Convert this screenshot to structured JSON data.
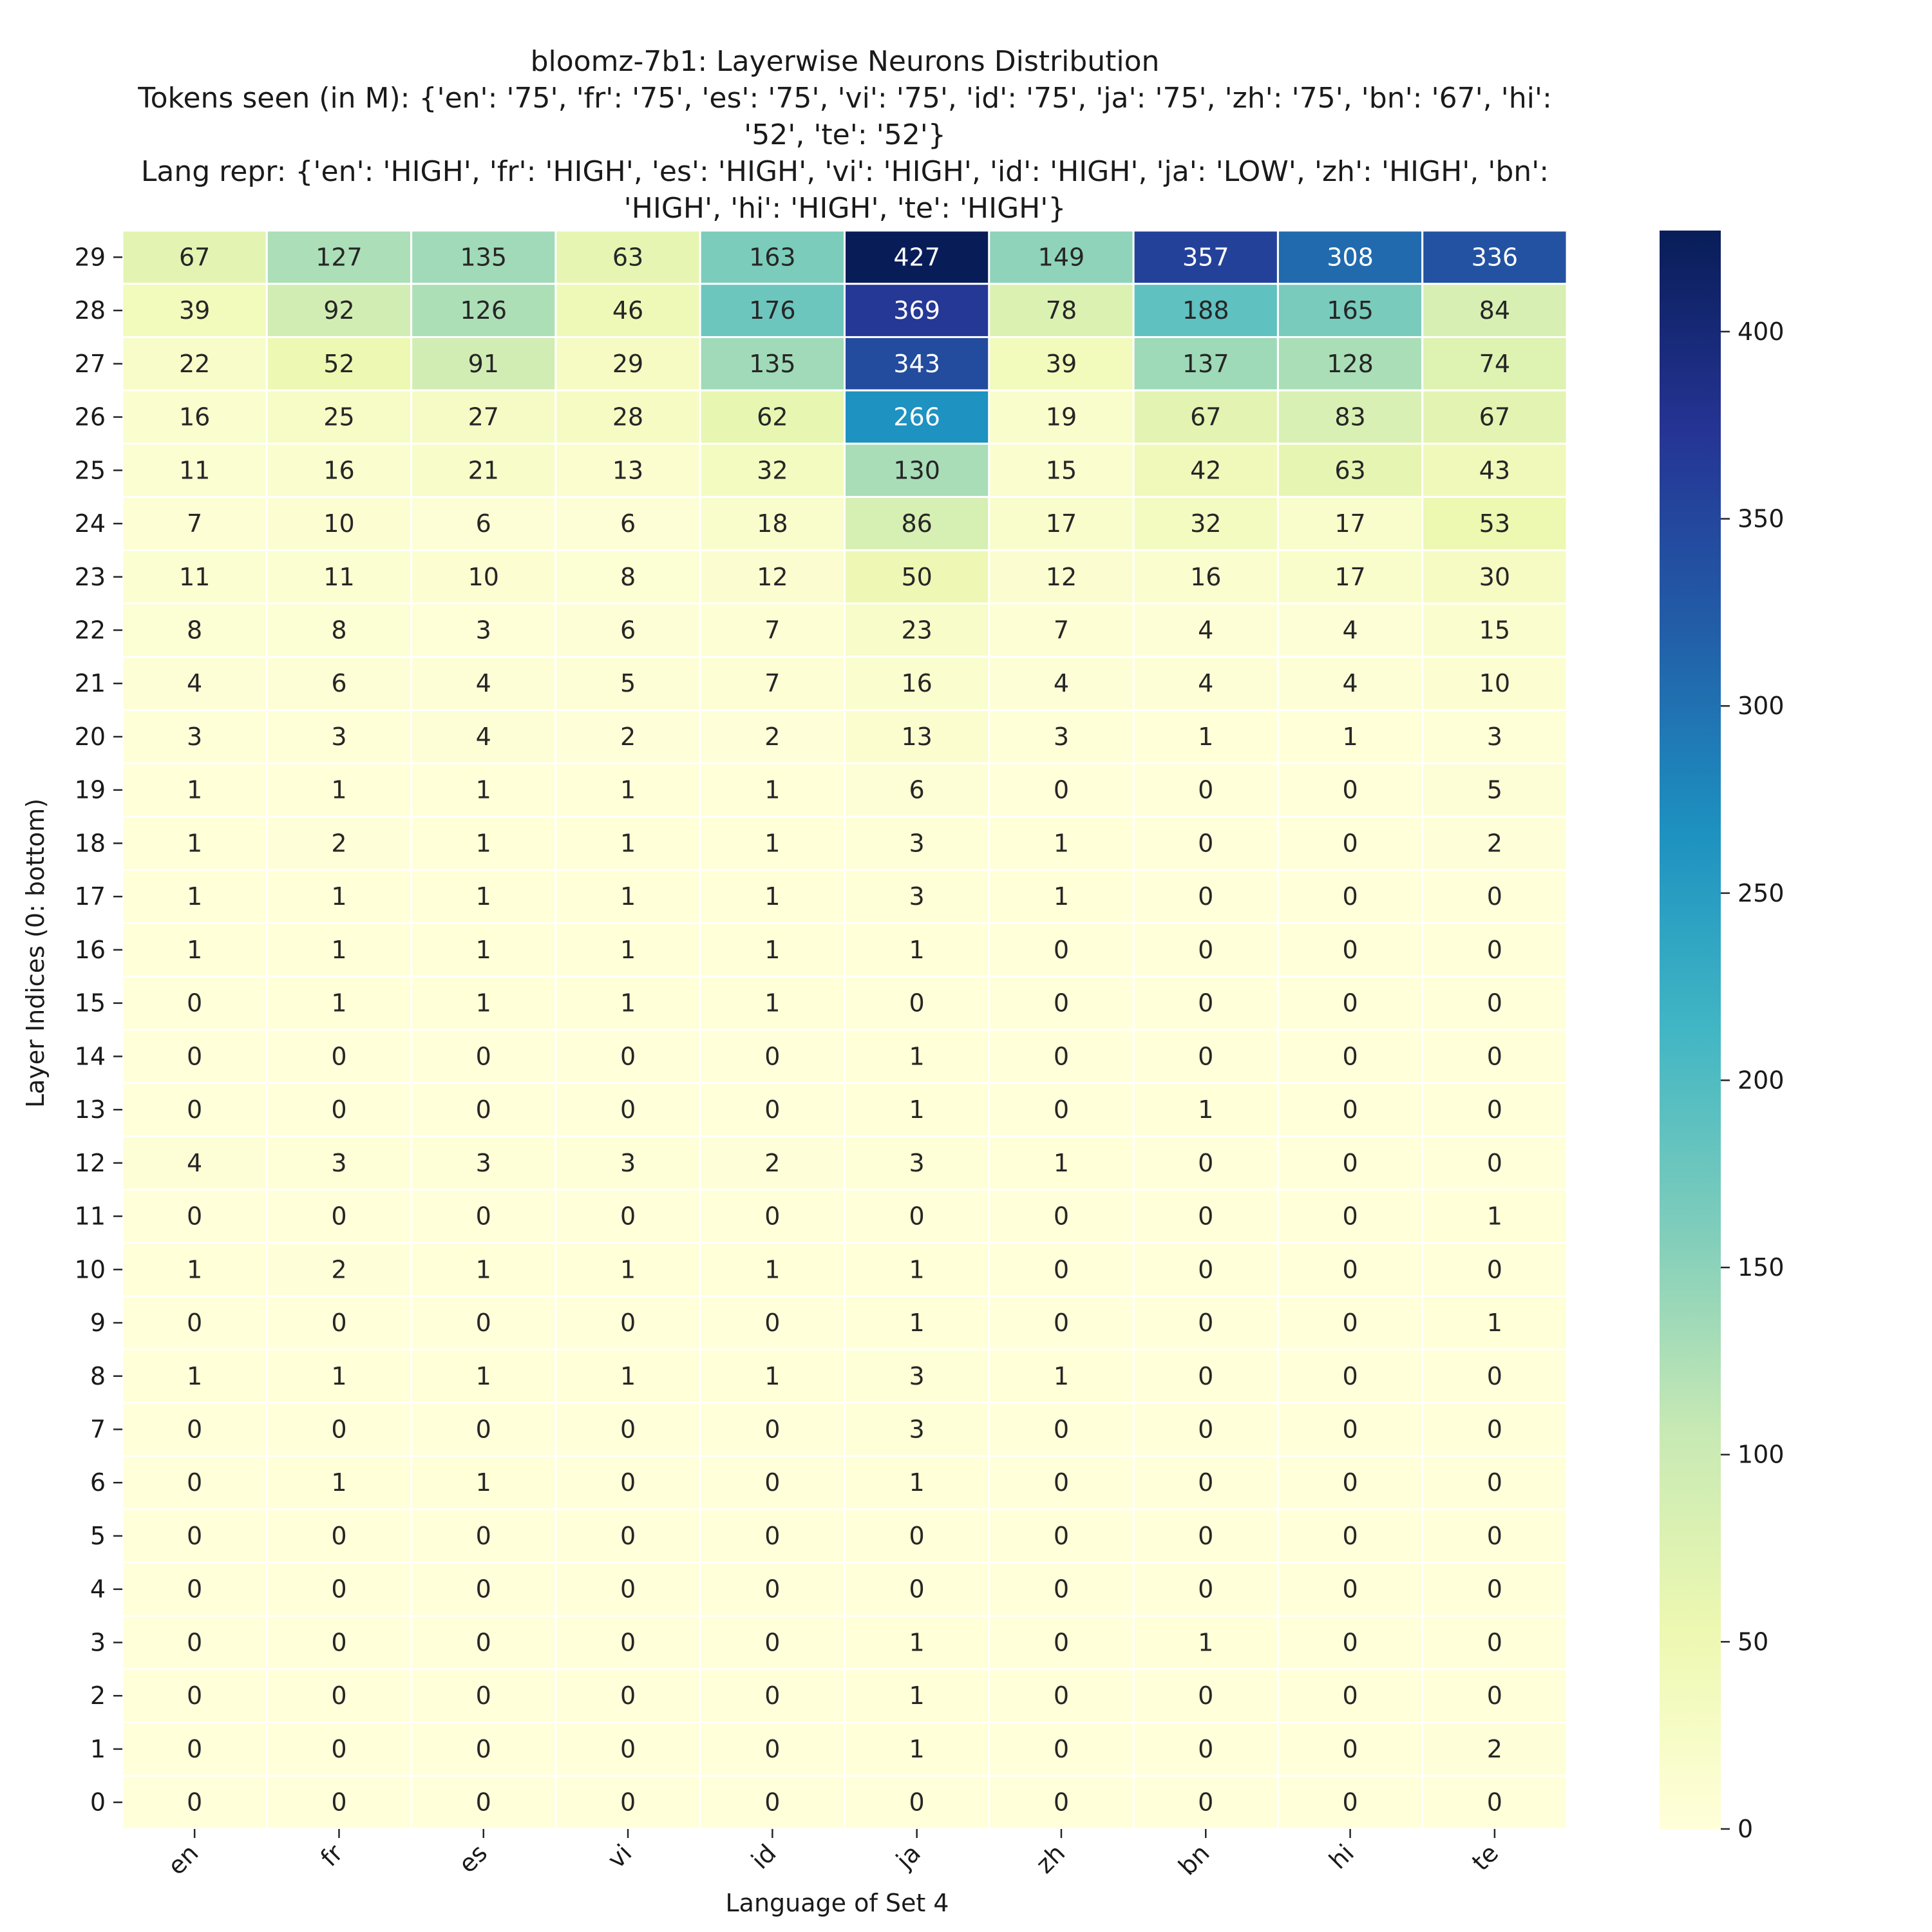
{
  "chart_data": {
    "type": "heatmap",
    "title_lines": [
      "bloomz-7b1: Layerwise Neurons Distribution",
      "Tokens seen (in M): {'en': '75', 'fr': '75', 'es': '75', 'vi': '75', 'id': '75', 'ja': '75', 'zh': '75', 'bn': '67', 'hi':",
      "'52', 'te': '52'}",
      "Lang repr: {'en': 'HIGH', 'fr': 'HIGH', 'es': 'HIGH', 'vi': 'HIGH', 'id': 'HIGH', 'ja': 'LOW', 'zh': 'HIGH', 'bn':",
      "'HIGH', 'hi': 'HIGH', 'te': 'HIGH'}"
    ],
    "xlabel": "Language of Set 4",
    "ylabel": "Layer Indices (0: bottom)",
    "x_categories": [
      "en",
      "fr",
      "es",
      "vi",
      "id",
      "ja",
      "zh",
      "bn",
      "hi",
      "te"
    ],
    "y_categories": [
      "29",
      "28",
      "27",
      "26",
      "25",
      "24",
      "23",
      "22",
      "21",
      "20",
      "19",
      "18",
      "17",
      "16",
      "15",
      "14",
      "13",
      "12",
      "11",
      "10",
      "9",
      "8",
      "7",
      "6",
      "5",
      "4",
      "3",
      "2",
      "1",
      "0"
    ],
    "values": [
      [
        67,
        127,
        135,
        63,
        163,
        427,
        149,
        357,
        308,
        336
      ],
      [
        39,
        92,
        126,
        46,
        176,
        369,
        78,
        188,
        165,
        84
      ],
      [
        22,
        52,
        91,
        29,
        135,
        343,
        39,
        137,
        128,
        74
      ],
      [
        16,
        25,
        27,
        28,
        62,
        266,
        19,
        67,
        83,
        67
      ],
      [
        11,
        16,
        21,
        13,
        32,
        130,
        15,
        42,
        63,
        43
      ],
      [
        7,
        10,
        6,
        6,
        18,
        86,
        17,
        32,
        17,
        53
      ],
      [
        11,
        11,
        10,
        8,
        12,
        50,
        12,
        16,
        17,
        30
      ],
      [
        8,
        8,
        3,
        6,
        7,
        23,
        7,
        4,
        4,
        15
      ],
      [
        4,
        6,
        4,
        5,
        7,
        16,
        4,
        4,
        4,
        10
      ],
      [
        3,
        3,
        4,
        2,
        2,
        13,
        3,
        1,
        1,
        3
      ],
      [
        1,
        1,
        1,
        1,
        1,
        6,
        0,
        0,
        0,
        5
      ],
      [
        1,
        2,
        1,
        1,
        1,
        3,
        1,
        0,
        0,
        2
      ],
      [
        1,
        1,
        1,
        1,
        1,
        3,
        1,
        0,
        0,
        0
      ],
      [
        1,
        1,
        1,
        1,
        1,
        1,
        0,
        0,
        0,
        0
      ],
      [
        0,
        1,
        1,
        1,
        1,
        0,
        0,
        0,
        0,
        0
      ],
      [
        0,
        0,
        0,
        0,
        0,
        1,
        0,
        0,
        0,
        0
      ],
      [
        0,
        0,
        0,
        0,
        0,
        1,
        0,
        1,
        0,
        0
      ],
      [
        4,
        3,
        3,
        3,
        2,
        3,
        1,
        0,
        0,
        0
      ],
      [
        0,
        0,
        0,
        0,
        0,
        0,
        0,
        0,
        0,
        1
      ],
      [
        1,
        2,
        1,
        1,
        1,
        1,
        0,
        0,
        0,
        0
      ],
      [
        0,
        0,
        0,
        0,
        0,
        1,
        0,
        0,
        0,
        1
      ],
      [
        1,
        1,
        1,
        1,
        1,
        3,
        1,
        0,
        0,
        0
      ],
      [
        0,
        0,
        0,
        0,
        0,
        3,
        0,
        0,
        0,
        0
      ],
      [
        0,
        1,
        1,
        0,
        0,
        1,
        0,
        0,
        0,
        0
      ],
      [
        0,
        0,
        0,
        0,
        0,
        0,
        0,
        0,
        0,
        0
      ],
      [
        0,
        0,
        0,
        0,
        0,
        0,
        0,
        0,
        0,
        0
      ],
      [
        0,
        0,
        0,
        0,
        0,
        1,
        0,
        1,
        0,
        0
      ],
      [
        0,
        0,
        0,
        0,
        0,
        1,
        0,
        0,
        0,
        0
      ],
      [
        0,
        0,
        0,
        0,
        0,
        1,
        0,
        0,
        0,
        2
      ],
      [
        0,
        0,
        0,
        0,
        0,
        0,
        0,
        0,
        0,
        0
      ]
    ],
    "colorbar": {
      "colormap": "YlGnBu",
      "vmin": 0,
      "vmax": 427,
      "ticks": [
        0,
        50,
        100,
        150,
        200,
        250,
        300,
        350,
        400
      ]
    },
    "annotations": true,
    "grid": false
  },
  "colors": {
    "colormap_stops": [
      "#ffffd9",
      "#edf8b1",
      "#c7e9b4",
      "#7fcdbb",
      "#41b6c4",
      "#1d91c0",
      "#225ea8",
      "#253494",
      "#081d58"
    ],
    "cell_border": "#ffffff",
    "text_dark": "#262626",
    "text_light": "#ffffff"
  }
}
